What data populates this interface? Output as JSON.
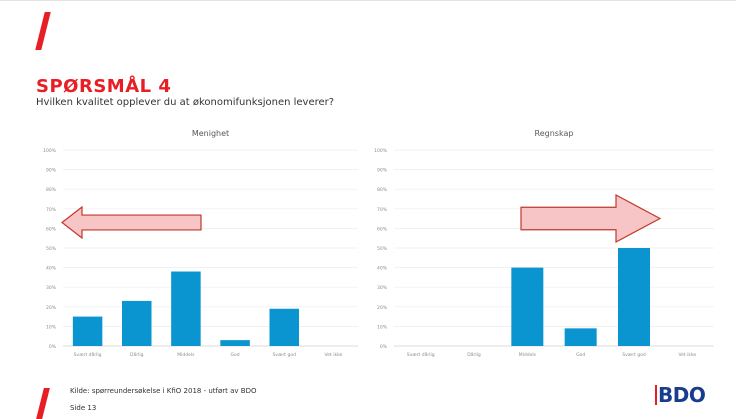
{
  "slide": {
    "title": "SPØRSMÅL 4",
    "subtitle": "Hvilken kvalitet opplever du at økonomifunksjonen leverer?",
    "footer_source": "Kilde: spørreundersøkelse i KfiO 2018 - utført av BDO",
    "footer_page": "Side 13",
    "logo_text": "BDO"
  },
  "colors": {
    "accent": "#e81e25",
    "bar": "#0a95d0",
    "arrow_fill": "#f7c5c5",
    "arrow_stroke": "#c0392b",
    "logo": "#1a3c8f"
  },
  "chart_data": [
    {
      "type": "bar",
      "title": "Menighet",
      "categories": [
        "Svært dårlig",
        "Dårlig",
        "Middels",
        "God",
        "Svært god",
        "Vet ikke"
      ],
      "values": [
        15,
        23,
        38,
        3,
        19,
        0
      ],
      "y_ticks": [
        "0%",
        "10%",
        "20%",
        "30%",
        "40%",
        "50%",
        "60%",
        "70%",
        "80%",
        "90%",
        "100%"
      ],
      "ylim": [
        0,
        100
      ],
      "grid": true,
      "annotation": "left-pointing arrow"
    },
    {
      "type": "bar",
      "title": "Regnskap",
      "categories": [
        "Svært dårlig",
        "Dårlig",
        "Middels",
        "God",
        "Svært god",
        "Vet ikke"
      ],
      "values": [
        0,
        0,
        40,
        9,
        50,
        0
      ],
      "y_ticks": [
        "0%",
        "10%",
        "20%",
        "30%",
        "40%",
        "50%",
        "60%",
        "70%",
        "80%",
        "90%",
        "100%"
      ],
      "ylim": [
        0,
        100
      ],
      "grid": true,
      "annotation": "right-pointing arrow"
    }
  ]
}
